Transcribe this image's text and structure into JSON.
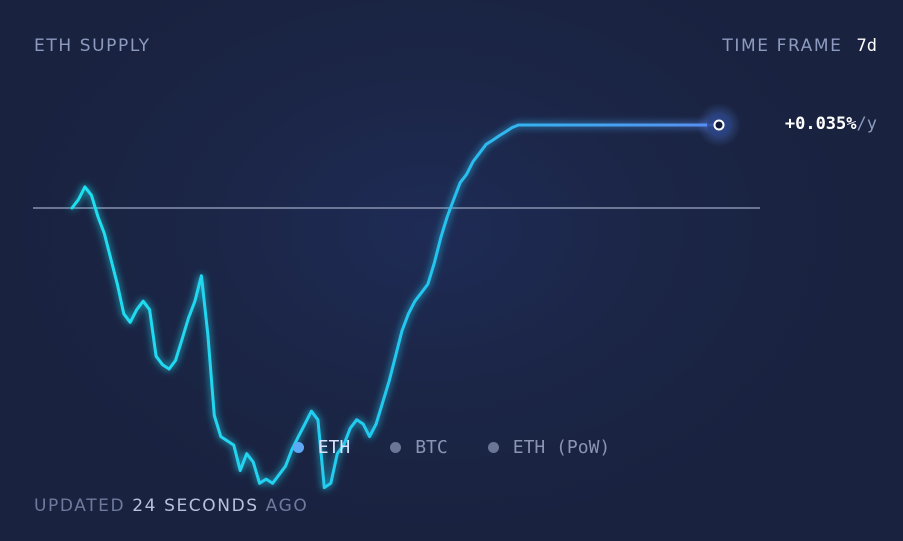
{
  "header": {
    "title": "ETH SUPPLY",
    "timeframe_label": "TIME FRAME",
    "timeframe_value": "7d"
  },
  "current": {
    "value": "+0.035%",
    "unit": "/y"
  },
  "legend": [
    {
      "label": "ETH",
      "color": "#5fa8f5",
      "active": true
    },
    {
      "label": "BTC",
      "color": "#6b7595",
      "active": false
    },
    {
      "label": "ETH (PoW)",
      "color": "#6b7595",
      "active": false
    }
  ],
  "footer": {
    "prefix": "UPDATED",
    "time": "24 SECONDS",
    "suffix": "AGO"
  },
  "colors": {
    "background": "#1a2340",
    "line_start": "#1fe0f0",
    "line_end": "#5b8cf2",
    "baseline": "#8892b0"
  },
  "chart_data": {
    "type": "line",
    "title": "ETH SUPPLY",
    "series": [
      {
        "name": "ETH",
        "x": [
          0,
          0.01,
          0.02,
          0.03,
          0.04,
          0.05,
          0.06,
          0.07,
          0.08,
          0.09,
          0.1,
          0.11,
          0.12,
          0.13,
          0.14,
          0.15,
          0.16,
          0.17,
          0.18,
          0.19,
          0.2,
          0.21,
          0.22,
          0.23,
          0.24,
          0.25,
          0.26,
          0.27,
          0.28,
          0.29,
          0.3,
          0.31,
          0.32,
          0.33,
          0.34,
          0.35,
          0.36,
          0.37,
          0.38,
          0.39,
          0.4,
          0.41,
          0.42,
          0.43,
          0.44,
          0.45,
          0.46,
          0.47,
          0.48,
          0.49,
          0.5,
          0.51,
          0.52,
          0.53,
          0.54,
          0.55,
          0.56,
          0.57,
          0.58,
          0.59,
          0.6,
          0.61,
          0.62,
          0.63,
          0.64,
          0.65,
          0.66,
          0.67,
          0.68,
          0.69,
          0.7,
          0.71,
          0.72,
          0.73,
          0.74,
          0.75,
          0.76,
          0.77,
          0.78,
          0.79,
          0.8,
          0.81,
          0.82,
          0.83,
          0.84,
          0.85,
          0.86,
          0.87,
          0.88,
          0.89,
          0.9,
          0.91,
          0.92,
          0.93,
          0.94,
          0.95,
          0.96,
          0.97,
          0.98,
          0.99,
          1
        ],
        "values": [
          0,
          0.0036,
          0.0089,
          0.0054,
          -0.0036,
          -0.0107,
          -0.0214,
          -0.0321,
          -0.0446,
          -0.0482,
          -0.0429,
          -0.0393,
          -0.0429,
          -0.0625,
          -0.0661,
          -0.0679,
          -0.0643,
          -0.0554,
          -0.0464,
          -0.0393,
          -0.0286,
          -0.0536,
          -0.0875,
          -0.0964,
          -0.0982,
          -0.1,
          -0.1107,
          -0.1036,
          -0.1071,
          -0.1161,
          -0.1143,
          -0.1161,
          -0.1125,
          -0.1089,
          -0.1018,
          -0.0964,
          -0.0911,
          -0.0857,
          -0.0893,
          -0.1179,
          -0.1161,
          -0.1036,
          -0.1,
          -0.0929,
          -0.0893,
          -0.0911,
          -0.0964,
          -0.0911,
          -0.0821,
          -0.0732,
          -0.0625,
          -0.0518,
          -0.0446,
          -0.0393,
          -0.0357,
          -0.0321,
          -0.0232,
          -0.0125,
          -0.0036,
          0.0036,
          0.0107,
          0.0143,
          0.0196,
          0.0232,
          0.0268,
          0.0286,
          0.0304,
          0.0321,
          0.0339,
          0.035,
          0.035,
          0.035,
          0.035,
          0.035,
          0.035,
          0.035,
          0.035,
          0.035,
          0.035,
          0.035,
          0.035,
          0.035,
          0.035,
          0.035,
          0.035,
          0.035,
          0.035,
          0.035,
          0.035,
          0.035,
          0.035,
          0.035,
          0.035,
          0.035,
          0.035,
          0.035,
          0.035,
          0.035,
          0.035,
          0.035,
          0.035
        ]
      }
    ],
    "baseline": 0,
    "current_value": 0.035,
    "grid": false,
    "legend_position": "bottom-center"
  }
}
